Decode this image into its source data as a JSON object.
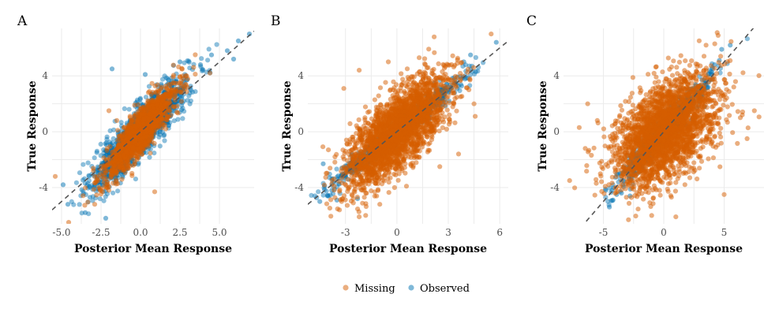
{
  "chart_data": [
    {
      "type": "scatter",
      "panel": "A",
      "title": "",
      "xlabel": "Posterior Mean Response",
      "ylabel": "True Response",
      "xlim": [
        -5.6,
        7.2
      ],
      "ylim": [
        -6.6,
        7.4
      ],
      "xticks": [
        -5,
        -2.5,
        0,
        2.5,
        5
      ],
      "xtick_labels": [
        "-5.0",
        "-2.5",
        "0.0",
        "2.5",
        "5.0"
      ],
      "yticks": [
        -4,
        0,
        4
      ],
      "ytick_labels": [
        "-4",
        "0",
        "4"
      ],
      "reference_line": {
        "slope": 1,
        "intercept": 0,
        "style": "dashed"
      },
      "series": [
        {
          "name": "Missing",
          "color": "#D55E00",
          "cloud": {
            "mean_x": 0.0,
            "mean_y": 0.0,
            "sd_x": 1.1,
            "sd_y": 1.6,
            "corr": 0.88
          },
          "points": [
            [
              -5.4,
              -3.2
            ],
            [
              -2.9,
              -5.2
            ],
            [
              0.9,
              -4.3
            ],
            [
              4.4,
              4.2
            ],
            [
              3.0,
              3.8
            ],
            [
              -2.0,
              1.5
            ],
            [
              -2.8,
              -3.6
            ],
            [
              0.5,
              2.8
            ],
            [
              -1.5,
              0.8
            ],
            [
              1.6,
              0.2
            ],
            [
              -0.8,
              -2.6
            ],
            [
              2.3,
              1.4
            ]
          ]
        },
        {
          "name": "Observed",
          "color": "#0072B2",
          "cloud": {
            "mean_x": 0.0,
            "mean_y": 0.0,
            "sd_x": 1.5,
            "sd_y": 1.95,
            "corr": 0.88
          },
          "points": [
            [
              6.9,
              7.0
            ],
            [
              6.2,
              6.5
            ],
            [
              5.5,
              5.8
            ],
            [
              5.9,
              5.2
            ],
            [
              4.5,
              5.5
            ],
            [
              -4.6,
              -5.2
            ],
            [
              -3.5,
              -5.8
            ],
            [
              -2.2,
              -6.2
            ],
            [
              -4.9,
              -3.8
            ],
            [
              -3.2,
              -4.7
            ],
            [
              2.5,
              5.0
            ],
            [
              -1.8,
              4.5
            ],
            [
              0.3,
              4.1
            ],
            [
              3.8,
              4.8
            ]
          ]
        }
      ]
    },
    {
      "type": "scatter",
      "panel": "B",
      "title": "",
      "xlabel": "Posterior Mean Response",
      "ylabel": "True Response",
      "xlim": [
        -5.2,
        6.5
      ],
      "ylim": [
        -6.6,
        7.4
      ],
      "xticks": [
        -3,
        0,
        3,
        6
      ],
      "xtick_labels": [
        "-3",
        "0",
        "3",
        "6"
      ],
      "yticks": [
        -4,
        0,
        4
      ],
      "ytick_labels": [
        "-4",
        "0",
        "4"
      ],
      "reference_line": {
        "slope": 1,
        "intercept": 0,
        "style": "dashed"
      },
      "series": [
        {
          "name": "Missing",
          "color": "#D55E00",
          "cloud": {
            "mean_x": 0.0,
            "mean_y": 0.0,
            "sd_x": 1.45,
            "sd_y": 1.95,
            "corr": 0.74
          },
          "points": [
            [
              5.5,
              7.0
            ],
            [
              -4.0,
              -1.3
            ],
            [
              -2.2,
              -6.1
            ],
            [
              -1.0,
              -5.2
            ],
            [
              4.2,
              3.0
            ],
            [
              4.5,
              2.0
            ],
            [
              2.5,
              -2.5
            ],
            [
              3.6,
              -1.6
            ],
            [
              -3.1,
              3.1
            ],
            [
              -2.2,
              4.4
            ],
            [
              1.3,
              5.3
            ],
            [
              -0.5,
              5.0
            ]
          ]
        },
        {
          "name": "Observed",
          "color": "#0072B2",
          "cloud": {
            "mean_x": 0.0,
            "mean_y": 0.0,
            "sd_x": 2.0,
            "sd_y": 2.0,
            "corr": 0.98
          },
          "points": [
            [
              5.8,
              6.4
            ],
            [
              4.3,
              5.5
            ],
            [
              3.9,
              5.0
            ],
            [
              -4.5,
              -5.0
            ],
            [
              -4.0,
              -4.6
            ],
            [
              -3.5,
              -4.9
            ],
            [
              -3.0,
              -3.2
            ],
            [
              -2.3,
              -4.8
            ],
            [
              -4.3,
              -2.3
            ],
            [
              4.6,
              4.3
            ],
            [
              2.2,
              3.5
            ],
            [
              -3.8,
              -4.2
            ]
          ]
        }
      ]
    },
    {
      "type": "scatter",
      "panel": "C",
      "title": "",
      "xlabel": "Posterior Mean Response",
      "ylabel": "True Response",
      "xlim": [
        -8.3,
        8.3
      ],
      "ylim": [
        -6.6,
        7.4
      ],
      "xticks": [
        -5,
        0,
        5
      ],
      "xtick_labels": [
        "-5",
        "0",
        "5"
      ],
      "yticks": [
        -4,
        0,
        4
      ],
      "ytick_labels": [
        "-4",
        "0",
        "4"
      ],
      "reference_line": {
        "slope": 1,
        "intercept": 0,
        "style": "dashed"
      },
      "series": [
        {
          "name": "Missing",
          "color": "#D55E00",
          "cloud": {
            "mean_x": 0.0,
            "mean_y": 0.0,
            "sd_x": 2.1,
            "sd_y": 1.95,
            "corr": 0.5
          },
          "points": [
            [
              -7.8,
              -3.5
            ],
            [
              -6.3,
              2.0
            ],
            [
              -7.0,
              0.3
            ],
            [
              -6.5,
              -1.2
            ],
            [
              7.5,
              1.5
            ],
            [
              6.5,
              1.2
            ],
            [
              5.8,
              3.2
            ],
            [
              4.5,
              6.9
            ],
            [
              3.5,
              6.2
            ],
            [
              5.0,
              -4.5
            ],
            [
              -3.1,
              -4.7
            ],
            [
              -1.0,
              -6.0
            ],
            [
              1.0,
              -6.1
            ],
            [
              -5.5,
              0.8
            ],
            [
              6.9,
              -0.5
            ]
          ]
        },
        {
          "name": "Observed",
          "color": "#0072B2",
          "cloud": {
            "mean_x": 0.0,
            "mean_y": 0.0,
            "sd_x": 1.9,
            "sd_y": 1.9,
            "corr": 0.96
          },
          "points": [
            [
              5.5,
              6.2
            ],
            [
              4.8,
              5.9
            ],
            [
              4.2,
              4.8
            ],
            [
              3.9,
              4.3
            ],
            [
              -4.5,
              -5.4
            ],
            [
              -4.2,
              -4.9
            ],
            [
              -3.9,
              -4.5
            ],
            [
              -3.5,
              -4.4
            ],
            [
              -2.8,
              -4.6
            ],
            [
              4.6,
              5.1
            ],
            [
              -4.8,
              -4.2
            ]
          ]
        }
      ]
    }
  ],
  "legend": {
    "position": "bottom",
    "items": [
      {
        "label": "Missing",
        "color": "#D55E00"
      },
      {
        "label": "Observed",
        "color": "#0072B2"
      }
    ]
  }
}
